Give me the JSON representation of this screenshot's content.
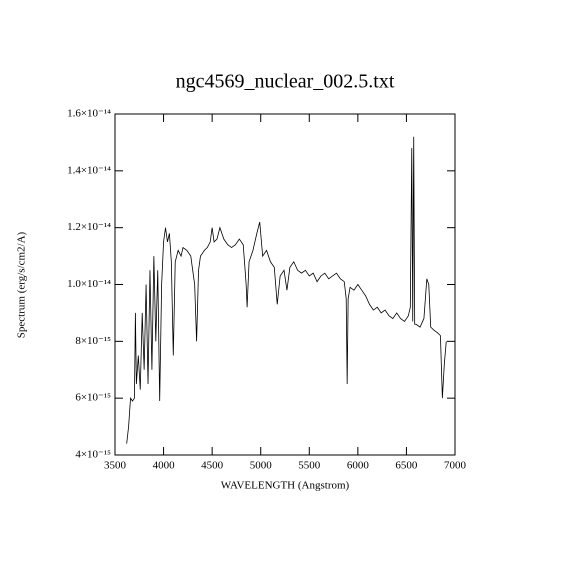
{
  "chart_data": {
    "type": "line",
    "title": "ngc4569_nuclear_002.5.txt",
    "xlabel": "WAVELENGTH (Angstrom)",
    "ylabel": "Spectrum (erg/s/cm2/A)",
    "xlim": [
      3500,
      7000
    ],
    "xticks": [
      3500,
      4000,
      4500,
      5000,
      5500,
      6000,
      6500,
      7000
    ],
    "ylim": [
      4e-15,
      1.6e-14
    ],
    "yticks": [
      {
        "value": 4e-15,
        "label": "4×10⁻¹⁵"
      },
      {
        "value": 6e-15,
        "label": "6×10⁻¹⁵"
      },
      {
        "value": 8e-15,
        "label": "8×10⁻¹⁵"
      },
      {
        "value": 1e-14,
        "label": "1.0×10⁻¹⁴"
      },
      {
        "value": 1.2e-14,
        "label": "1.2×10⁻¹⁴"
      },
      {
        "value": 1.4e-14,
        "label": "1.4×10⁻¹⁴"
      },
      {
        "value": 1.6e-14,
        "label": "1.6×10⁻¹⁴"
      }
    ],
    "series": [
      {
        "color": "#000000",
        "x": [
          3620,
          3640,
          3660,
          3680,
          3700,
          3710,
          3720,
          3740,
          3760,
          3780,
          3800,
          3820,
          3840,
          3860,
          3880,
          3900,
          3920,
          3940,
          3960,
          3980,
          4000,
          4020,
          4040,
          4060,
          4080,
          4100,
          4120,
          4150,
          4180,
          4200,
          4240,
          4280,
          4300,
          4320,
          4340,
          4360,
          4380,
          4420,
          4450,
          4480,
          4500,
          4520,
          4550,
          4580,
          4620,
          4660,
          4700,
          4740,
          4780,
          4820,
          4850,
          4860,
          4880,
          4920,
          4960,
          4990,
          5020,
          5060,
          5100,
          5140,
          5170,
          5200,
          5240,
          5270,
          5300,
          5340,
          5380,
          5420,
          5460,
          5500,
          5540,
          5580,
          5620,
          5660,
          5700,
          5740,
          5780,
          5820,
          5860,
          5880,
          5890,
          5900,
          5920,
          5960,
          6000,
          6040,
          6080,
          6120,
          6160,
          6200,
          6240,
          6280,
          6320,
          6360,
          6400,
          6440,
          6480,
          6520,
          6540,
          6555,
          6565,
          6575,
          6585,
          6600,
          6640,
          6680,
          6710,
          6730,
          6750,
          6780,
          6820,
          6850,
          6870,
          6890,
          6910
        ],
        "values": [
          4.4e-15,
          5e-15,
          6e-15,
          5.9e-15,
          6e-15,
          9e-15,
          6.5e-15,
          7.5e-15,
          6.3e-15,
          9e-15,
          7e-15,
          1e-14,
          6.5e-15,
          1.05e-14,
          7e-15,
          1.1e-14,
          8e-15,
          1.05e-14,
          5.9e-15,
          1e-14,
          1.15e-14,
          1.2e-14,
          1.15e-14,
          1.18e-14,
          1.08e-14,
          7.5e-15,
          1.08e-14,
          1.12e-14,
          1.1e-14,
          1.13e-14,
          1.12e-14,
          1.1e-14,
          1.05e-14,
          1e-14,
          8e-15,
          1.05e-14,
          1.1e-14,
          1.12e-14,
          1.13e-14,
          1.15e-14,
          1.2e-14,
          1.15e-14,
          1.16e-14,
          1.2e-14,
          1.16e-14,
          1.14e-14,
          1.13e-14,
          1.14e-14,
          1.16e-14,
          1.14e-14,
          1e-14,
          9.2e-15,
          1.08e-14,
          1.12e-14,
          1.18e-14,
          1.22e-14,
          1.1e-14,
          1.12e-14,
          1.08e-14,
          1.06e-14,
          9.3e-15,
          1.03e-14,
          1.05e-14,
          9.8e-15,
          1.06e-14,
          1.08e-14,
          1.05e-14,
          1.04e-14,
          1.05e-14,
          1.03e-14,
          1.04e-14,
          1.01e-14,
          1.03e-14,
          1.04e-14,
          1.02e-14,
          1.03e-14,
          1.04e-14,
          1.02e-14,
          1.01e-14,
          9.5e-15,
          6.5e-15,
          9.5e-15,
          9.9e-15,
          9.8e-15,
          1e-14,
          9.8e-15,
          9.6e-15,
          9.3e-15,
          9.1e-15,
          9.2e-15,
          9e-15,
          9.1e-15,
          8.9e-15,
          8.8e-15,
          9e-15,
          8.8e-15,
          8.7e-15,
          8.9e-15,
          9.2e-15,
          1.48e-14,
          8.7e-15,
          1.52e-14,
          8.6e-15,
          8.6e-15,
          8.5e-15,
          8.8e-15,
          1.02e-14,
          1e-14,
          8.5e-15,
          8.4e-15,
          8.3e-15,
          8.2e-15,
          6e-15,
          7.2e-15,
          8e-15
        ]
      }
    ]
  }
}
